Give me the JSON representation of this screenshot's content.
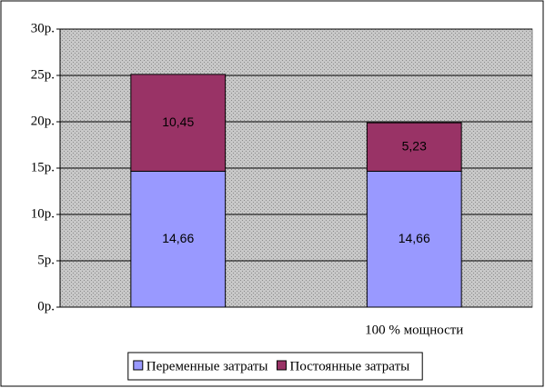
{
  "chart_data": {
    "type": "bar",
    "stacked": true,
    "categories": [
      null,
      "100 % мощности"
    ],
    "series": [
      {
        "name": "Переменные затраты",
        "color": "#9999ff",
        "values": [
          14.66,
          14.66
        ],
        "value_labels": [
          "14,66",
          "14,66"
        ]
      },
      {
        "name": "Постоянные затраты",
        "color": "#993366",
        "values": [
          10.45,
          5.23
        ],
        "value_labels": [
          "10,45",
          "5,23"
        ]
      }
    ],
    "ylim": [
      0,
      30
    ],
    "yticks": [
      {
        "value": 0,
        "label": "0р."
      },
      {
        "value": 5,
        "label": "5р."
      },
      {
        "value": 10,
        "label": "10р."
      },
      {
        "value": 15,
        "label": "15р."
      },
      {
        "value": 20,
        "label": "20р."
      },
      {
        "value": 25,
        "label": "25р."
      },
      {
        "value": 30,
        "label": "30р."
      }
    ],
    "grid": true,
    "legend": "bottom"
  }
}
